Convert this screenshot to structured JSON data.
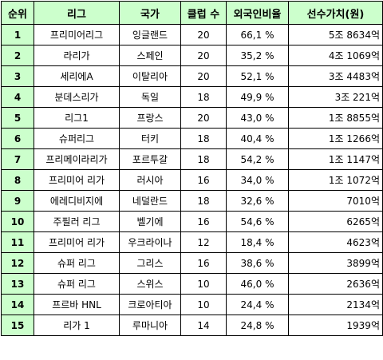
{
  "header": {
    "rank": "순위",
    "league": "리그",
    "country": "국가",
    "clubs": "클럽 수",
    "foreign_ratio": "외국인비율",
    "player_value": "선수가치(원)"
  },
  "rows": [
    {
      "rank": "1",
      "league": "프리미어리그",
      "country": "잉글랜드",
      "clubs": "20",
      "foreign_ratio": "66,1 %",
      "player_value": "5조 8634억"
    },
    {
      "rank": "2",
      "league": "라리가",
      "country": "스페인",
      "clubs": "20",
      "foreign_ratio": "35,2 %",
      "player_value": "4조 1069억"
    },
    {
      "rank": "3",
      "league": "세리에A",
      "country": "이탈리아",
      "clubs": "20",
      "foreign_ratio": "52,1 %",
      "player_value": "3조 4483억"
    },
    {
      "rank": "4",
      "league": "분데스리가",
      "country": "독일",
      "clubs": "18",
      "foreign_ratio": "49,9 %",
      "player_value": "3조 221억"
    },
    {
      "rank": "5",
      "league": "리그1",
      "country": "프랑스",
      "clubs": "20",
      "foreign_ratio": "43,0 %",
      "player_value": "1조 8855억"
    },
    {
      "rank": "6",
      "league": "슈퍼리그",
      "country": "터키",
      "clubs": "18",
      "foreign_ratio": "40,4 %",
      "player_value": "1조 1266억"
    },
    {
      "rank": "7",
      "league": "프리메이라리가",
      "country": "포르투갈",
      "clubs": "18",
      "foreign_ratio": "54,2 %",
      "player_value": "1조 1147억"
    },
    {
      "rank": "8",
      "league": "프리미어 리가",
      "country": "러시아",
      "clubs": "16",
      "foreign_ratio": "34,0 %",
      "player_value": "1조 1072억"
    },
    {
      "rank": "9",
      "league": "에레디비지에",
      "country": "네덜란드",
      "clubs": "18",
      "foreign_ratio": "32,6 %",
      "player_value": "7010억"
    },
    {
      "rank": "10",
      "league": "주필러 리그",
      "country": "벨기에",
      "clubs": "16",
      "foreign_ratio": "54,6 %",
      "player_value": "6265억"
    },
    {
      "rank": "11",
      "league": "프리미어 리가",
      "country": "우크라이나",
      "clubs": "12",
      "foreign_ratio": "18,4 %",
      "player_value": "4623억"
    },
    {
      "rank": "12",
      "league": "슈퍼 리그",
      "country": "그리스",
      "clubs": "16",
      "foreign_ratio": "38,6 %",
      "player_value": "3899억"
    },
    {
      "rank": "13",
      "league": "슈퍼 리그",
      "country": "스위스",
      "clubs": "10",
      "foreign_ratio": "46,0 %",
      "player_value": "2636억"
    },
    {
      "rank": "14",
      "league": "프르바 HNL",
      "country": "크로아티아",
      "clubs": "10",
      "foreign_ratio": "24,4 %",
      "player_value": "2134억"
    },
    {
      "rank": "15",
      "league": "리가 1",
      "country": "루마니아",
      "clubs": "14",
      "foreign_ratio": "24,8 %",
      "player_value": "1939억"
    }
  ],
  "colors": {
    "header_fill": "#ccffcc",
    "rank_fill": "#ccffcc",
    "border": "#000000"
  }
}
